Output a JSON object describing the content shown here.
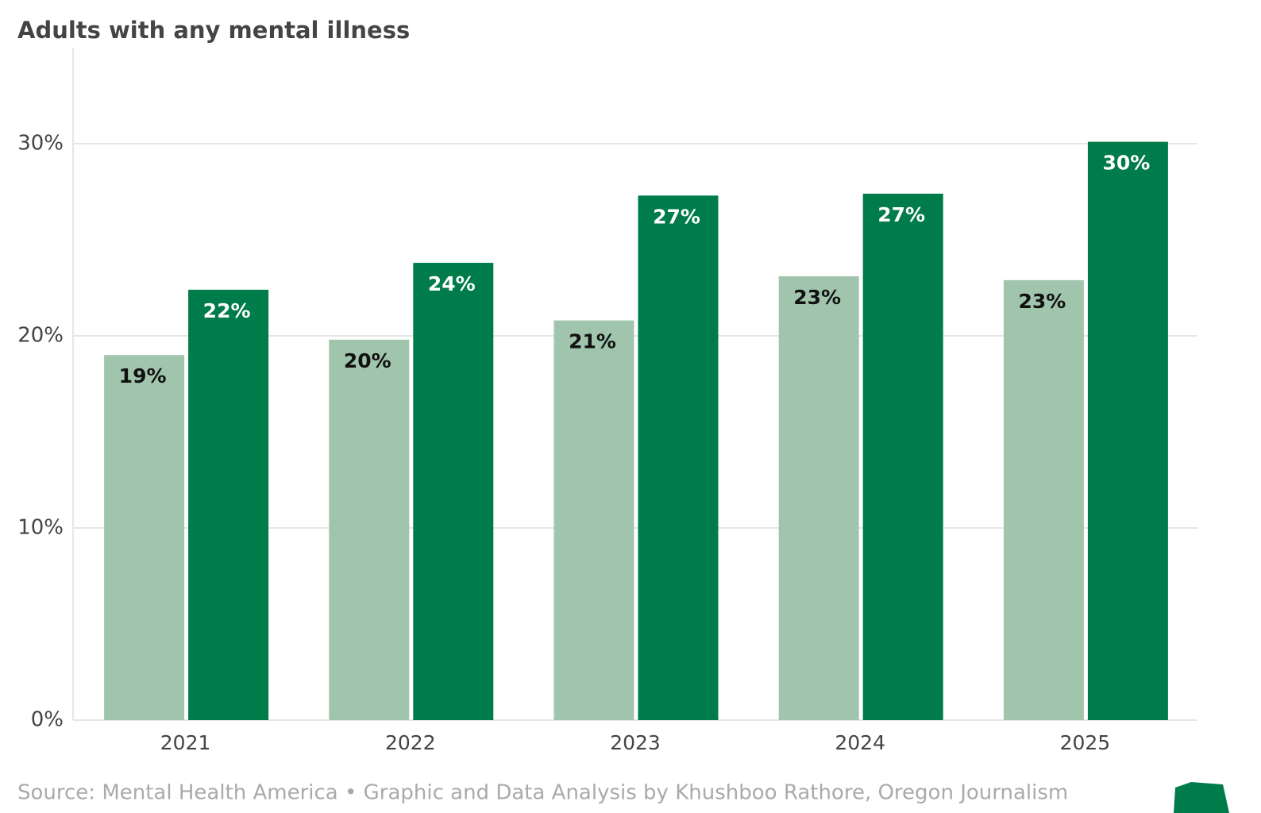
{
  "chart_data": {
    "type": "bar",
    "title": "Adults with any mental illness",
    "categories": [
      "2021",
      "2022",
      "2023",
      "2024",
      "2025"
    ],
    "series": [
      {
        "color": "#a0c5ac",
        "values": [
          19,
          19.8,
          20.8,
          23.1,
          22.9
        ],
        "value_labels": [
          "19%",
          "20%",
          "21%",
          "23%",
          "23%"
        ]
      },
      {
        "color": "#007c4a",
        "values": [
          22.4,
          23.8,
          27.3,
          27.4,
          30.1
        ],
        "value_labels": [
          "22%",
          "24%",
          "27%",
          "27%",
          "30%"
        ]
      }
    ],
    "ylim": [
      0,
      35
    ],
    "yticks": [
      {
        "value": 0,
        "label": "0%"
      },
      {
        "value": 10,
        "label": "10%"
      },
      {
        "value": 20,
        "label": "20%"
      },
      {
        "value": 30,
        "label": "30%"
      }
    ],
    "grid": true,
    "source": "Source: Mental Health America • Graphic and Data Analysis by Khushboo Rathore, Oregon Journalism"
  }
}
